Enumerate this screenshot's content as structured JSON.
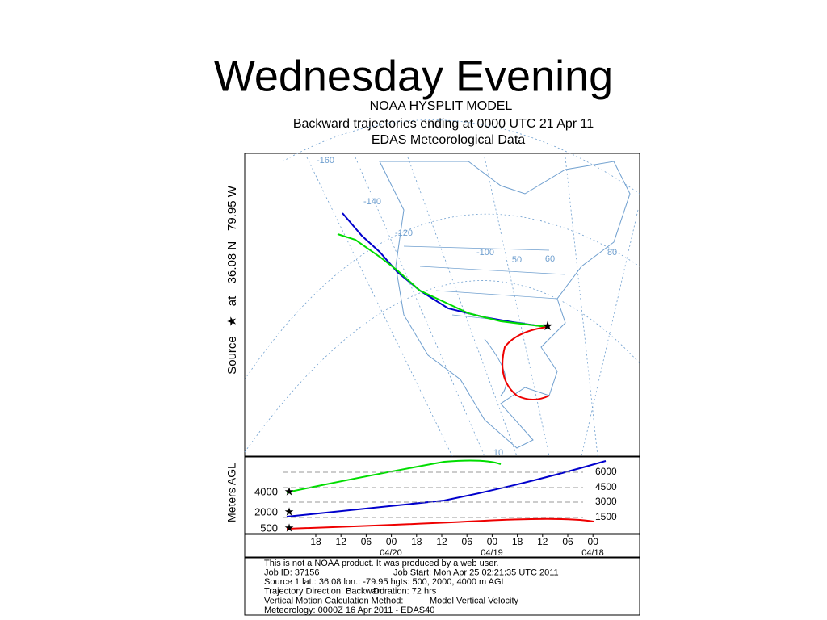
{
  "slide": {
    "title": "Wednesday Evening"
  },
  "plot": {
    "header": [
      "NOAA HYSPLIT MODEL",
      "Backward trajectories ending at 0000 UTC 21 Apr 11",
      "EDAS Meteorological Data"
    ],
    "side_label": [
      "Source",
      "★",
      "at",
      "36.08 N",
      "79.95 W"
    ],
    "map_labels": [
      "-160",
      "-140",
      "-120",
      "-100",
      "50",
      "60",
      "80",
      "10"
    ],
    "height_axis_label": "Meters AGL",
    "start_heights": [
      "4000",
      "2000",
      "500"
    ],
    "height_ticks": [
      "6000",
      "4500",
      "3000",
      "1500"
    ],
    "time_ticks": [
      "18",
      "12",
      "06",
      "00",
      "18",
      "12",
      "06",
      "00",
      "18",
      "12",
      "06",
      "00"
    ],
    "dates": [
      "04/20",
      "04/19",
      "04/18"
    ],
    "footer": [
      [
        "This is not a NOAA product. It was produced by a web user."
      ],
      [
        "Job ID: 37156",
        "Job Start: Mon Apr 25 02:21:35 UTC 2011"
      ],
      [
        "Source 1 lat.: 36.08  lon.: -79.95  hgts: 500, 2000, 4000 m AGL"
      ],
      [
        "Trajectory Direction: Backward",
        "Duration: 72 hrs"
      ],
      [
        "Vertical Motion Calculation Method:",
        "Model Vertical Velocity"
      ],
      [
        "Meteorology: 0000Z 16 Apr 2011 - EDAS40"
      ]
    ]
  }
}
